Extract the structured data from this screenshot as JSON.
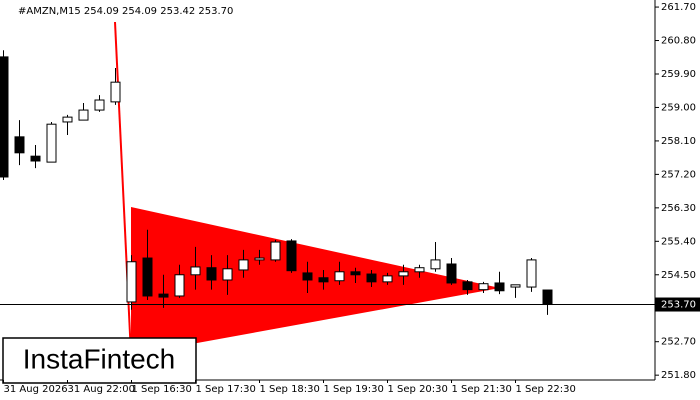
{
  "chart_data": {
    "type": "candlestick",
    "title": "#AMZN,M15  254.09 254.09 253.42 253.70",
    "categories": [
      "31 Aug 2026",
      null,
      null,
      null,
      "31 Aug 22:00",
      null,
      null,
      null,
      "1 Sep 16:30",
      null,
      null,
      null,
      "1 Sep 17:30",
      null,
      null,
      null,
      "1 Sep 18:30",
      null,
      null,
      null,
      "1 Sep 19:30",
      null,
      null,
      null,
      "1 Sep 20:30",
      null,
      null,
      null,
      "1 Sep 21:30",
      null,
      null,
      null,
      "1 Sep 22:30",
      null,
      null
    ],
    "open": [
      260.36,
      258.21,
      257.69,
      257.53,
      258.61,
      258.66,
      258.93,
      259.15,
      253.77,
      254.95,
      253.98,
      253.93,
      254.5,
      254.69,
      254.36,
      254.63,
      254.9,
      254.9,
      255.41,
      254.55,
      254.42,
      254.34,
      254.58,
      254.52,
      254.31,
      254.47,
      254.58,
      254.66,
      254.79,
      254.31,
      254.1,
      254.28,
      254.17,
      254.17,
      254.09
    ],
    "high": [
      260.54,
      258.66,
      257.99,
      258.61,
      258.8,
      259.12,
      259.33,
      260.06,
      255.03,
      255.71,
      254.5,
      254.77,
      255.25,
      255.03,
      255.03,
      255.17,
      255.17,
      255.44,
      255.46,
      254.85,
      254.63,
      254.85,
      254.69,
      254.63,
      254.55,
      254.77,
      254.77,
      255.38,
      254.95,
      254.36,
      254.31,
      254.58,
      254.23,
      254.95,
      254.09
    ],
    "low": [
      257.05,
      257.45,
      257.37,
      257.53,
      258.26,
      258.66,
      258.88,
      259.07,
      253.56,
      253.82,
      253.61,
      253.88,
      254.1,
      254.1,
      253.96,
      254.42,
      254.77,
      254.85,
      254.55,
      254.01,
      254.1,
      254.23,
      254.28,
      254.17,
      254.23,
      254.23,
      254.42,
      254.58,
      254.23,
      253.96,
      254.01,
      253.98,
      253.88,
      254.04,
      253.42
    ],
    "close": [
      257.13,
      257.78,
      257.56,
      258.55,
      258.74,
      258.93,
      259.2,
      259.68,
      254.85,
      253.93,
      253.9,
      254.5,
      254.71,
      254.36,
      254.66,
      254.9,
      254.95,
      255.38,
      254.61,
      254.36,
      254.31,
      254.58,
      254.5,
      254.31,
      254.47,
      254.58,
      254.69,
      254.9,
      254.28,
      254.1,
      254.26,
      254.07,
      254.23,
      254.9,
      253.7
    ],
    "up_color": "#ffffff",
    "down_color": "#000000",
    "color": "#000000",
    "pattern_color": "#ff0000",
    "ylim": [
      251.67,
      261.89
    ],
    "yticks": [
      {
        "value": 261.7,
        "label": "261.70"
      },
      {
        "value": 260.8,
        "label": "260.80"
      },
      {
        "value": 259.9,
        "label": "259.90"
      },
      {
        "value": 259.0,
        "label": "259.00"
      },
      {
        "value": 258.1,
        "label": "258.10"
      },
      {
        "value": 257.2,
        "label": "257.20"
      },
      {
        "value": 256.3,
        "label": "256.30"
      },
      {
        "value": 255.4,
        "label": "255.40"
      },
      {
        "value": 254.5,
        "label": "254.50"
      },
      {
        "value": 252.7,
        "label": "252.70"
      },
      {
        "value": 251.8,
        "label": "251.80"
      }
    ],
    "current_price": {
      "value": 253.7,
      "label": "253.70"
    }
  },
  "watermark": "InstaFintech"
}
